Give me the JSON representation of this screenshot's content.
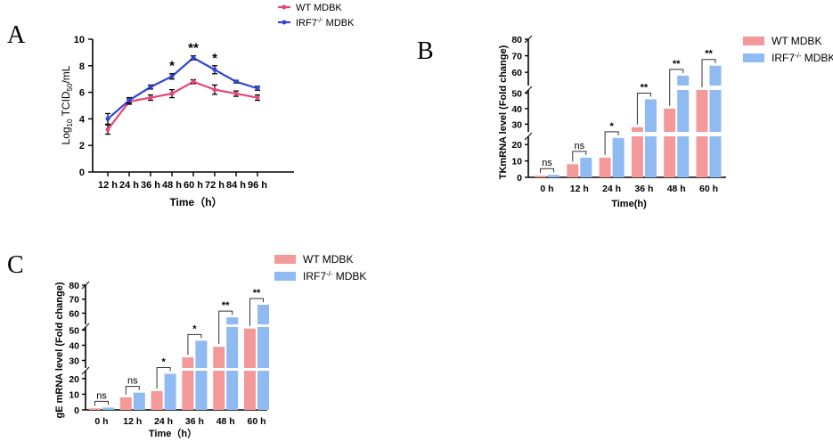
{
  "chart_data": [
    {
      "panel": "A",
      "type": "line",
      "title": "",
      "xlabel": "Time（h）",
      "ylabel": "Log10 TCID50/mL",
      "ylabel_parts": {
        "pre": "Log",
        "sub1": "10",
        "mid": " TCID",
        "sub2": "50",
        "post": "/mL"
      },
      "ylim": [
        0,
        10
      ],
      "yticks": [
        "0",
        "2",
        "4",
        "6",
        "8",
        "10"
      ],
      "categories": [
        "12 h",
        "24 h",
        "36 h",
        "48 h",
        "60 h",
        "72 h",
        "84 h",
        "96 h"
      ],
      "series": [
        {
          "name": "WT MDBK",
          "color": "#e8437a",
          "values": [
            3.2,
            5.3,
            5.6,
            5.9,
            6.8,
            6.2,
            5.9,
            5.6
          ],
          "errors": [
            0.35,
            0.2,
            0.2,
            0.3,
            0.15,
            0.35,
            0.2,
            0.2
          ]
        },
        {
          "name": "IRF7-/- MDBK",
          "legend": {
            "pre": "IRF7",
            "sup": "-/-",
            "post": " MDBK"
          },
          "color": "#2f46d6",
          "values": [
            4.0,
            5.4,
            6.4,
            7.2,
            8.6,
            7.7,
            6.8,
            6.3
          ],
          "errors": [
            0.4,
            0.2,
            0.15,
            0.2,
            0.15,
            0.3,
            0.1,
            0.15
          ]
        }
      ],
      "significance": [
        {
          "index": 3,
          "label": "*"
        },
        {
          "index": 4,
          "label": "**"
        },
        {
          "index": 5,
          "label": "*"
        }
      ]
    },
    {
      "panel": "B",
      "type": "bar",
      "xlabel": "Time(h)",
      "ylabel": "TKmRNA level (Fold change)",
      "categories": [
        "0 h",
        "12 h",
        "24 h",
        "36 h",
        "48 h",
        "60 h"
      ],
      "yticks": [
        "0",
        "10",
        "20",
        "30",
        "40",
        "50",
        "60",
        "70",
        "80"
      ],
      "series": [
        {
          "name": "WT MDBK",
          "color": "#f4999a",
          "values": [
            1,
            8,
            12,
            28,
            40,
            52
          ]
        },
        {
          "name": "IRF7-/- MDBK",
          "legend": {
            "pre": "IRF7",
            "sup": "-/-",
            "post": " MDBK"
          },
          "color": "#8fbaf2",
          "values": [
            1.5,
            12,
            24,
            46,
            58,
            64
          ]
        }
      ],
      "significance": [
        "ns",
        "ns",
        "*",
        "**",
        "**",
        "**"
      ]
    },
    {
      "panel": "C",
      "type": "bar",
      "xlabel": "Time（h）",
      "ylabel": "gE mRNA level (Fold change)",
      "categories": [
        "0 h",
        "12 h",
        "24 h",
        "36 h",
        "48 h",
        "60 h"
      ],
      "yticks": [
        "0",
        "10",
        "20",
        "30",
        "40",
        "50",
        "60",
        "70",
        "80"
      ],
      "series": [
        {
          "name": "WT MDBK",
          "color": "#f4999a",
          "values": [
            1,
            8,
            12,
            32,
            39,
            51
          ]
        },
        {
          "name": "IRF7-/- MDBK",
          "legend": {
            "pre": "IRF7",
            "sup": "-/-",
            "post": " MDBK"
          },
          "color": "#8fbaf2",
          "values": [
            1.5,
            11,
            23,
            43,
            57,
            66
          ]
        }
      ],
      "significance": [
        "ns",
        "ns",
        "*",
        "*",
        "**",
        "**"
      ]
    }
  ],
  "panel_labels": {
    "a": "A",
    "b": "B",
    "c": "C"
  }
}
